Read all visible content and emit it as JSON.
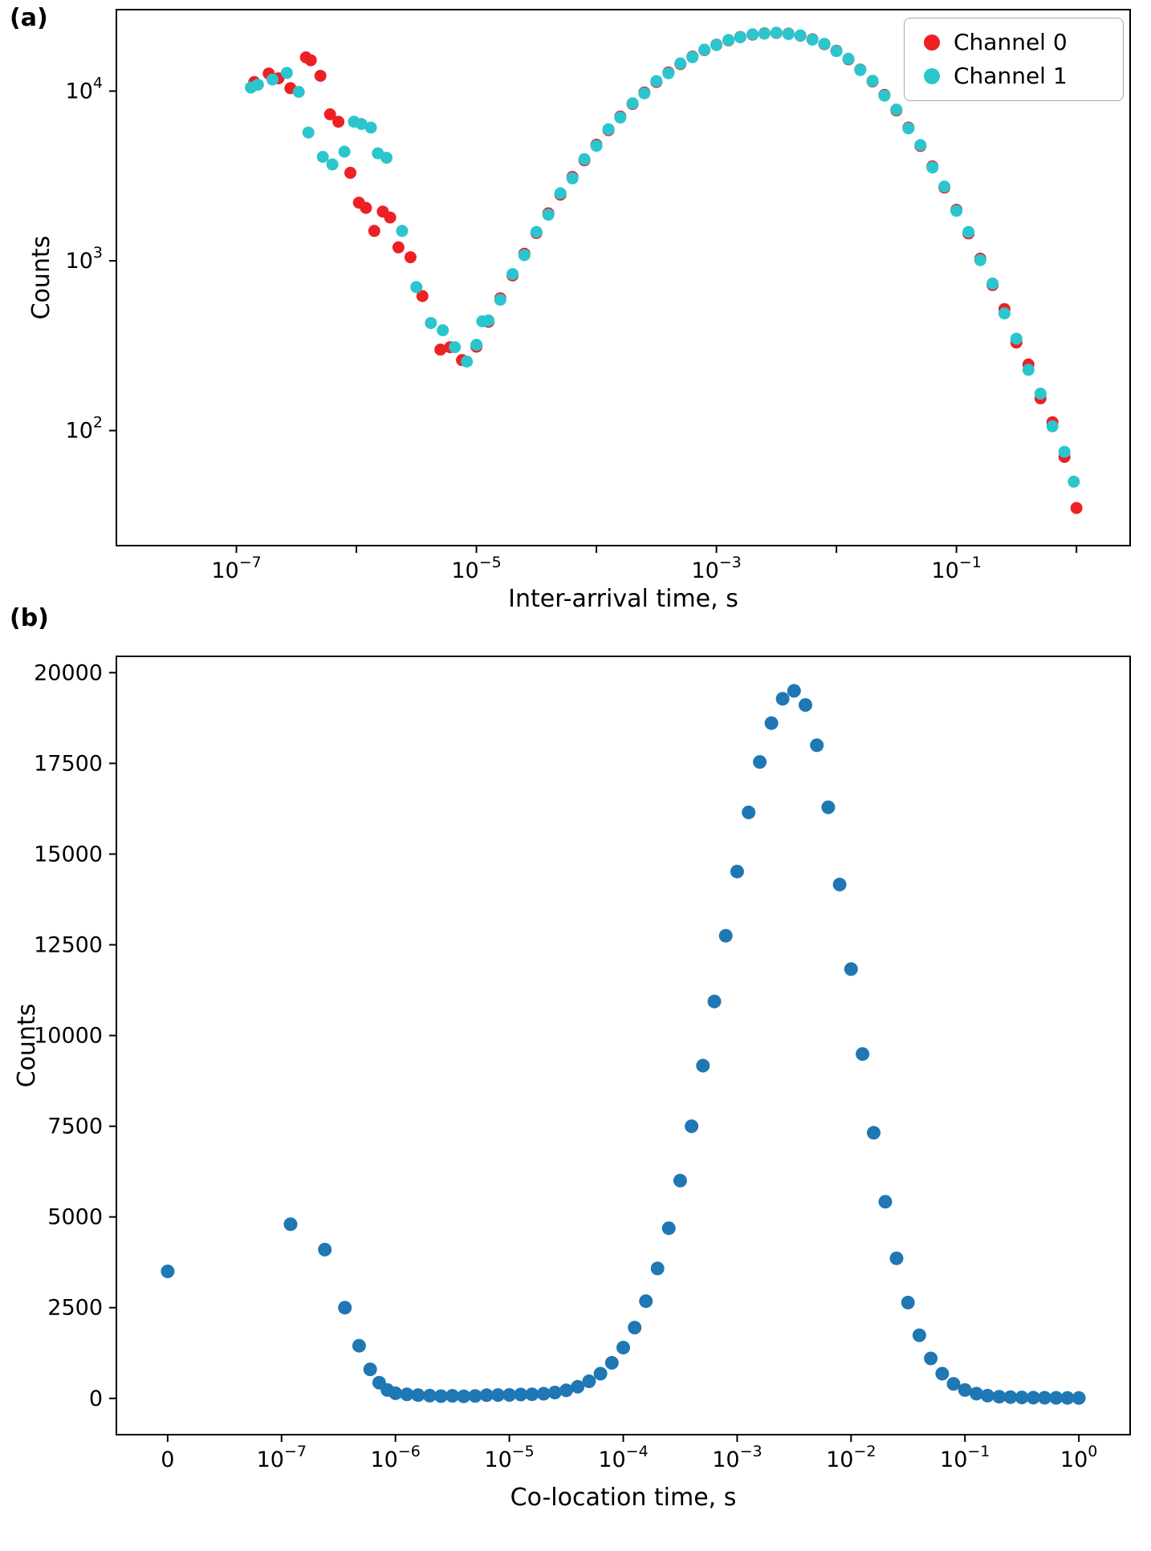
{
  "panels": {
    "a": {
      "label": "(a)"
    },
    "b": {
      "label": "(b)"
    }
  },
  "chart_data": [
    {
      "panel": "a",
      "type": "scatter",
      "x_scale": "log",
      "y_scale": "log",
      "xlabel": "Inter-arrival time, s",
      "ylabel": "Counts",
      "xlim": [
        1e-08,
        2.8
      ],
      "ylim": [
        21,
        30200
      ],
      "x_tick_values": [
        1e-07,
        1e-05,
        0.001,
        0.1
      ],
      "x_decade_ticks": [
        -7,
        -6,
        -5,
        -4,
        -3,
        -2,
        -1,
        0
      ],
      "y_tick_values": [
        100,
        1000,
        10000
      ],
      "grid": false,
      "legend": {
        "position": "upper right",
        "items": [
          {
            "label": "Channel 0",
            "color": "#ed2024"
          },
          {
            "label": "Channel 1",
            "color": "#2bc5cd"
          }
        ]
      },
      "series": [
        {
          "name": "Channel 0",
          "color": "#ed2024",
          "points": [
            [
              1.41e-07,
              11300
            ],
            [
              1.86e-07,
              12700
            ],
            [
              2.24e-07,
              11900
            ],
            [
              2.82e-07,
              10400
            ],
            [
              3.8e-07,
              15800
            ],
            [
              4.17e-07,
              15200
            ],
            [
              5.01e-07,
              12300
            ],
            [
              6.03e-07,
              7300
            ],
            [
              7.08e-07,
              6600
            ],
            [
              8.91e-07,
              3300
            ],
            [
              1.05e-06,
              2200
            ],
            [
              1.2e-06,
              2050
            ],
            [
              1.41e-06,
              1500
            ],
            [
              1.66e-06,
              1950
            ],
            [
              1.91e-06,
              1800
            ],
            [
              2.24e-06,
              1200
            ],
            [
              2.82e-06,
              1050
            ],
            [
              3.55e-06,
              620
            ],
            [
              5.01e-06,
              300
            ],
            [
              6.03e-06,
              310
            ],
            [
              7.59e-06,
              260
            ],
            [
              1e-05,
              312
            ],
            [
              1.26e-05,
              437
            ],
            [
              1.58e-05,
              602
            ],
            [
              2e-05,
              820
            ],
            [
              2.51e-05,
              1102
            ],
            [
              3.16e-05,
              1459
            ],
            [
              3.98e-05,
              1905
            ],
            [
              5.01e-05,
              2455
            ],
            [
              6.31e-05,
              3120
            ],
            [
              7.94e-05,
              3912
            ],
            [
              0.0001,
              4831
            ],
            [
              0.000126,
              5889
            ],
            [
              0.000158,
              7080
            ],
            [
              0.0002,
              8394
            ],
            [
              0.000251,
              9814
            ],
            [
              0.000316,
              11320
            ],
            [
              0.000398,
              12875
            ],
            [
              0.000501,
              14441
            ],
            [
              0.000631,
              15975
            ],
            [
              0.000794,
              17431
            ],
            [
              0.001,
              18759
            ],
            [
              0.00126,
              19908
            ],
            [
              0.00158,
              20838
            ],
            [
              0.002,
              21512
            ],
            [
              0.00251,
              21903
            ],
            [
              0.00316,
              22000
            ],
            [
              0.00398,
              21800
            ],
            [
              0.00501,
              21200
            ],
            [
              0.00631,
              20200
            ],
            [
              0.00794,
              18900
            ],
            [
              0.01,
              17300
            ],
            [
              0.0126,
              15400
            ],
            [
              0.0158,
              13400
            ],
            [
              0.02,
              11400
            ],
            [
              0.0251,
              9500
            ],
            [
              0.0316,
              7700
            ],
            [
              0.0398,
              6100
            ],
            [
              0.0501,
              4750
            ],
            [
              0.0631,
              3600
            ],
            [
              0.0794,
              2700
            ],
            [
              0.1,
              2000
            ],
            [
              0.126,
              1450
            ],
            [
              0.158,
              1030
            ],
            [
              0.2,
              720
            ],
            [
              0.251,
              520
            ],
            [
              0.316,
              330
            ],
            [
              0.398,
              245
            ],
            [
              0.501,
              155
            ],
            [
              0.631,
              112
            ],
            [
              0.794,
              70
            ],
            [
              1.0,
              35
            ]
          ]
        },
        {
          "name": "Channel 1",
          "color": "#2bc5cd",
          "points": [
            [
              1.32e-07,
              10500
            ],
            [
              1.51e-07,
              10900
            ],
            [
              2e-07,
              11700
            ],
            [
              2.63e-07,
              12800
            ],
            [
              3.31e-07,
              9900
            ],
            [
              3.98e-07,
              5700
            ],
            [
              5.25e-07,
              4100
            ],
            [
              6.31e-07,
              3700
            ],
            [
              7.94e-07,
              4400
            ],
            [
              9.55e-07,
              6600
            ],
            [
              1.1e-06,
              6400
            ],
            [
              1.32e-06,
              6100
            ],
            [
              1.51e-06,
              4300
            ],
            [
              1.78e-06,
              4050
            ],
            [
              2.4e-06,
              1500
            ],
            [
              3.16e-06,
              700
            ],
            [
              4.17e-06,
              430
            ],
            [
              5.25e-06,
              390
            ],
            [
              6.61e-06,
              310
            ],
            [
              8.32e-06,
              255
            ],
            [
              1.12e-05,
              440
            ],
            [
              1e-05,
              320
            ],
            [
              1.26e-05,
              445
            ],
            [
              1.58e-05,
              590
            ],
            [
              2e-05,
              835
            ],
            [
              2.51e-05,
              1080
            ],
            [
              3.16e-05,
              1480
            ],
            [
              3.98e-05,
              1870
            ],
            [
              5.01e-05,
              2500
            ],
            [
              6.31e-05,
              3060
            ],
            [
              7.94e-05,
              3970
            ],
            [
              0.0001,
              4760
            ],
            [
              0.000126,
              5960
            ],
            [
              0.000158,
              6990
            ],
            [
              0.0002,
              8480
            ],
            [
              0.000251,
              9700
            ],
            [
              0.000316,
              11450
            ],
            [
              0.000398,
              12740
            ],
            [
              0.000501,
              14570
            ],
            [
              0.000631,
              15840
            ],
            [
              0.000794,
              17540
            ],
            [
              0.001,
              18660
            ],
            [
              0.00126,
              20010
            ],
            [
              0.00158,
              20740
            ],
            [
              0.002,
              21600
            ],
            [
              0.00251,
              21820
            ],
            [
              0.00316,
              22080
            ],
            [
              0.00398,
              21700
            ],
            [
              0.00501,
              21300
            ],
            [
              0.00631,
              20100
            ],
            [
              0.00794,
              19000
            ],
            [
              0.01,
              17200
            ],
            [
              0.0126,
              15500
            ],
            [
              0.0158,
              13300
            ],
            [
              0.02,
              11500
            ],
            [
              0.0251,
              9400
            ],
            [
              0.0316,
              7790
            ],
            [
              0.0398,
              6030
            ],
            [
              0.0501,
              4810
            ],
            [
              0.0631,
              3550
            ],
            [
              0.0794,
              2740
            ],
            [
              0.1,
              1970
            ],
            [
              0.126,
              1480
            ],
            [
              0.158,
              1010
            ],
            [
              0.2,
              735
            ],
            [
              0.251,
              490
            ],
            [
              0.316,
              348
            ],
            [
              0.398,
              228
            ],
            [
              0.501,
              165
            ],
            [
              0.631,
              106
            ],
            [
              0.794,
              75
            ],
            [
              0.95,
              50
            ]
          ]
        }
      ]
    },
    {
      "panel": "b",
      "type": "scatter",
      "x_scale": "symlog",
      "y_scale": "linear",
      "xlabel": "Co-location time, s",
      "ylabel": "Counts",
      "xlim": [
        0,
        2.8
      ],
      "ylim": [
        -1000,
        20450
      ],
      "x_tick_values": [
        0,
        1e-07,
        1e-06,
        1e-05,
        0.0001,
        0.001,
        0.01,
        0.1,
        1
      ],
      "y_tick_values": [
        0,
        2500,
        5000,
        7500,
        10000,
        12500,
        15000,
        17500,
        20000
      ],
      "grid": false,
      "series": [
        {
          "name": "counts",
          "color": "#1f77b4",
          "points": [
            [
              0,
              3500
            ],
            [
              1.2e-07,
              4800
            ],
            [
              2.4e-07,
              4100
            ],
            [
              3.6e-07,
              2500
            ],
            [
              4.8e-07,
              1450
            ],
            [
              6e-07,
              800
            ],
            [
              7.2e-07,
              430
            ],
            [
              8.5e-07,
              230
            ],
            [
              1e-06,
              140
            ],
            [
              1.26e-06,
              110
            ],
            [
              1.58e-06,
              90
            ],
            [
              2e-06,
              75
            ],
            [
              2.51e-06,
              62
            ],
            [
              3.16e-06,
              70
            ],
            [
              3.98e-06,
              58
            ],
            [
              5.01e-06,
              66
            ],
            [
              6.31e-06,
              88
            ],
            [
              7.94e-06,
              92
            ],
            [
              1e-05,
              95
            ],
            [
              1.26e-05,
              105
            ],
            [
              1.58e-05,
              112
            ],
            [
              2e-05,
              128
            ],
            [
              2.51e-05,
              160
            ],
            [
              3.16e-05,
              220
            ],
            [
              3.98e-05,
              320
            ],
            [
              5.01e-05,
              470
            ],
            [
              6.31e-05,
              680
            ],
            [
              7.94e-05,
              980
            ],
            [
              0.0001,
              1400
            ],
            [
              0.000126,
              1950
            ],
            [
              0.000158,
              2680
            ],
            [
              0.0002,
              3580
            ],
            [
              0.000251,
              4690
            ],
            [
              0.000316,
              6000
            ],
            [
              0.000398,
              7500
            ],
            [
              0.000501,
              9170
            ],
            [
              0.000631,
              10940
            ],
            [
              0.000794,
              12750
            ],
            [
              0.001,
              14520
            ],
            [
              0.00126,
              16150
            ],
            [
              0.00158,
              17540
            ],
            [
              0.002,
              18610
            ],
            [
              0.00251,
              19280
            ],
            [
              0.00316,
              19500
            ],
            [
              0.00398,
              19110
            ],
            [
              0.00501,
              18000
            ],
            [
              0.00631,
              16290
            ],
            [
              0.00794,
              14160
            ],
            [
              0.01,
              11830
            ],
            [
              0.0126,
              9490
            ],
            [
              0.0158,
              7320
            ],
            [
              0.02,
              5420
            ],
            [
              0.0251,
              3860
            ],
            [
              0.0316,
              2640
            ],
            [
              0.0398,
              1740
            ],
            [
              0.0501,
              1100
            ],
            [
              0.0631,
              680
            ],
            [
              0.0794,
              400
            ],
            [
              0.1,
              230
            ],
            [
              0.126,
              130
            ],
            [
              0.158,
              75
            ],
            [
              0.2,
              45
            ],
            [
              0.251,
              35
            ],
            [
              0.316,
              25
            ],
            [
              0.398,
              20
            ],
            [
              0.501,
              18
            ],
            [
              0.631,
              15
            ],
            [
              0.794,
              12
            ],
            [
              1.0,
              10
            ]
          ]
        }
      ]
    }
  ]
}
